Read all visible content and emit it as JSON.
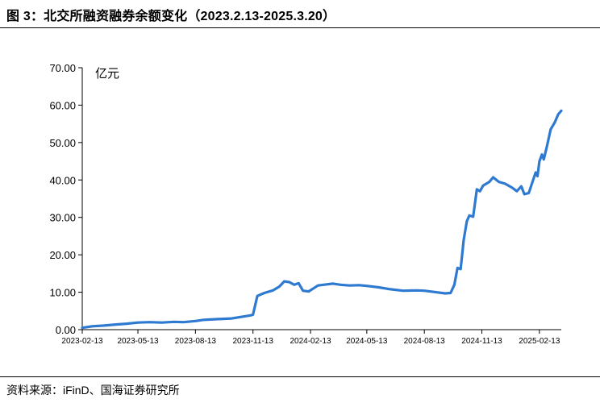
{
  "header": {
    "title": "图 3：北交所融资融券余额变化（2023.2.13-2025.3.20）"
  },
  "footer": {
    "source": "资料来源：iFinD、国海证券研究所"
  },
  "chart_data": {
    "type": "line",
    "title": "图 3：北交所融资融券余额变化（2023.2.13-2025.3.20）",
    "ylabel": "亿元",
    "xlabel": "",
    "ylim": [
      0,
      70
    ],
    "yticks": [
      "0.00",
      "10.00",
      "20.00",
      "30.00",
      "40.00",
      "50.00",
      "60.00",
      "70.00"
    ],
    "x_ticks": [
      "2023-02-13",
      "2023-05-13",
      "2023-08-13",
      "2023-11-13",
      "2024-02-13",
      "2024-05-13",
      "2024-08-13",
      "2024-11-13",
      "2025-02-13"
    ],
    "xlim": [
      "2023-02-13",
      "2025-03-20"
    ],
    "grid": false,
    "line_color": "#2f7ad1",
    "series": [
      {
        "name": "",
        "points": [
          [
            "2023-02-13",
            0.5
          ],
          [
            "2023-03-01",
            0.9
          ],
          [
            "2023-03-20",
            1.1
          ],
          [
            "2023-04-10",
            1.4
          ],
          [
            "2023-04-25",
            1.6
          ],
          [
            "2023-05-13",
            1.9
          ],
          [
            "2023-06-01",
            2.0
          ],
          [
            "2023-06-20",
            1.9
          ],
          [
            "2023-07-10",
            2.1
          ],
          [
            "2023-07-25",
            2.0
          ],
          [
            "2023-08-13",
            2.3
          ],
          [
            "2023-08-25",
            2.6
          ],
          [
            "2023-09-15",
            2.8
          ],
          [
            "2023-10-10",
            3.0
          ],
          [
            "2023-10-25",
            3.4
          ],
          [
            "2023-11-08",
            3.8
          ],
          [
            "2023-11-13",
            4.0
          ],
          [
            "2023-11-20",
            9.0
          ],
          [
            "2023-12-01",
            9.8
          ],
          [
            "2023-12-15",
            10.5
          ],
          [
            "2023-12-25",
            11.5
          ],
          [
            "2024-01-02",
            12.9
          ],
          [
            "2024-01-10",
            12.7
          ],
          [
            "2024-01-18",
            12.0
          ],
          [
            "2024-01-25",
            12.4
          ],
          [
            "2024-02-01",
            10.4
          ],
          [
            "2024-02-10",
            10.2
          ],
          [
            "2024-02-25",
            11.8
          ],
          [
            "2024-03-10",
            12.1
          ],
          [
            "2024-03-20",
            12.3
          ],
          [
            "2024-04-01",
            12.0
          ],
          [
            "2024-04-15",
            11.8
          ],
          [
            "2024-05-01",
            11.9
          ],
          [
            "2024-05-13",
            11.7
          ],
          [
            "2024-06-01",
            11.3
          ],
          [
            "2024-06-20",
            10.8
          ],
          [
            "2024-07-10",
            10.4
          ],
          [
            "2024-08-01",
            10.5
          ],
          [
            "2024-08-13",
            10.4
          ],
          [
            "2024-09-01",
            10.0
          ],
          [
            "2024-09-15",
            9.7
          ],
          [
            "2024-09-24",
            9.8
          ],
          [
            "2024-09-30",
            12.0
          ],
          [
            "2024-10-05",
            16.5
          ],
          [
            "2024-10-10",
            16.2
          ],
          [
            "2024-10-15",
            24.0
          ],
          [
            "2024-10-20",
            29.0
          ],
          [
            "2024-10-24",
            30.5
          ],
          [
            "2024-10-30",
            30.2
          ],
          [
            "2024-11-05",
            37.5
          ],
          [
            "2024-11-10",
            37.0
          ],
          [
            "2024-11-15",
            38.5
          ],
          [
            "2024-11-25",
            39.5
          ],
          [
            "2024-12-01",
            40.7
          ],
          [
            "2024-12-10",
            39.5
          ],
          [
            "2024-12-20",
            39.0
          ],
          [
            "2024-12-31",
            38.0
          ],
          [
            "2025-01-08",
            37.0
          ],
          [
            "2025-01-15",
            38.3
          ],
          [
            "2025-01-20",
            36.2
          ],
          [
            "2025-01-27",
            36.5
          ],
          [
            "2025-02-03",
            40.0
          ],
          [
            "2025-02-07",
            42.0
          ],
          [
            "2025-02-10",
            41.0
          ],
          [
            "2025-02-13",
            45.0
          ],
          [
            "2025-02-17",
            46.8
          ],
          [
            "2025-02-20",
            45.5
          ],
          [
            "2025-02-25",
            49.0
          ],
          [
            "2025-03-03",
            53.5
          ],
          [
            "2025-03-10",
            55.5
          ],
          [
            "2025-03-15",
            57.5
          ],
          [
            "2025-03-20",
            58.5
          ]
        ]
      }
    ]
  }
}
